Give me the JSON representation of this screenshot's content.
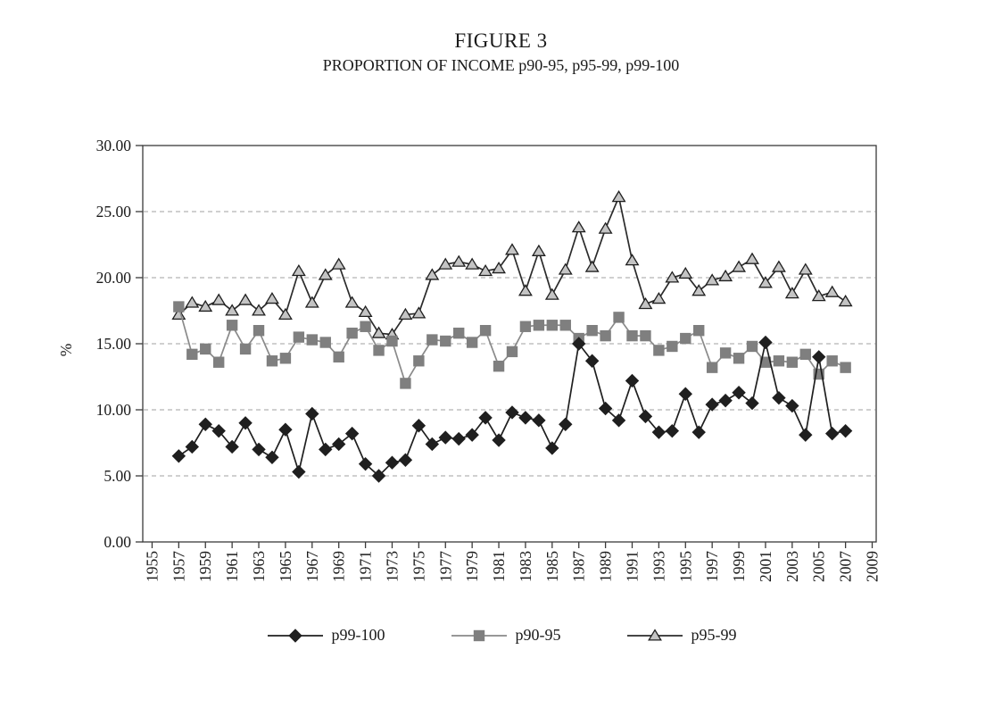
{
  "figure": {
    "title": "FIGURE 3",
    "subtitle": "PROPORTION OF INCOME p90-95, p95-99, p99-100"
  },
  "chart_data": {
    "type": "line",
    "title": "FIGURE 3",
    "subtitle": "PROPORTION OF INCOME p90-95, p95-99, p99-100",
    "xlabel": "",
    "ylabel": "%",
    "xlim": [
      1954.3,
      2009.3
    ],
    "ylim": [
      0,
      30
    ],
    "grid": true,
    "grid_values": [
      5,
      10,
      15,
      20,
      25
    ],
    "legend_position": "bottom",
    "x_ticks": [
      1955,
      1957,
      1959,
      1961,
      1963,
      1965,
      1967,
      1969,
      1971,
      1973,
      1975,
      1977,
      1979,
      1981,
      1983,
      1985,
      1987,
      1989,
      1991,
      1993,
      1995,
      1997,
      1999,
      2001,
      2003,
      2005,
      2007,
      2009
    ],
    "y_ticks": [
      0,
      5,
      10,
      15,
      20,
      25,
      30
    ],
    "y_tick_labels": [
      "0.00",
      "5.00",
      "10.00",
      "15.00",
      "20.00",
      "25.00",
      "30.00"
    ],
    "x": [
      1957,
      1958,
      1959,
      1960,
      1961,
      1962,
      1963,
      1964,
      1965,
      1966,
      1967,
      1968,
      1969,
      1970,
      1971,
      1972,
      1973,
      1974,
      1975,
      1976,
      1977,
      1978,
      1979,
      1980,
      1981,
      1982,
      1983,
      1984,
      1985,
      1986,
      1987,
      1988,
      1989,
      1990,
      1991,
      1992,
      1993,
      1994,
      1995,
      1996,
      1997,
      1998,
      1999,
      2000,
      2001,
      2002,
      2003,
      2004,
      2005,
      2006,
      2007
    ],
    "series": [
      {
        "name": "p99-100",
        "marker": "diamond",
        "line_color": "#1f1f1f",
        "marker_fill": "#1f1f1f",
        "marker_stroke": "#1f1f1f",
        "values": [
          6.5,
          7.2,
          8.9,
          8.4,
          7.2,
          9.0,
          7.0,
          6.4,
          8.5,
          5.3,
          9.7,
          7.0,
          7.4,
          8.2,
          5.9,
          5.0,
          6.0,
          6.2,
          8.8,
          7.4,
          7.9,
          7.8,
          8.1,
          9.4,
          7.7,
          9.8,
          9.4,
          9.2,
          7.1,
          8.9,
          15.0,
          13.7,
          10.1,
          9.2,
          12.2,
          9.5,
          8.3,
          8.4,
          11.2,
          8.3,
          10.4,
          10.7,
          11.3,
          10.5,
          15.1,
          10.9,
          10.3,
          8.1,
          14.0,
          8.2,
          8.4
        ]
      },
      {
        "name": "p90-95",
        "marker": "square",
        "line_color": "#8a8a8a",
        "marker_fill": "#7f7f7f",
        "marker_stroke": "#7f7f7f",
        "values": [
          17.8,
          14.2,
          14.6,
          13.6,
          16.4,
          14.6,
          16.0,
          13.7,
          13.9,
          15.5,
          15.3,
          15.1,
          14.0,
          15.8,
          16.3,
          14.5,
          15.2,
          12.0,
          13.7,
          15.3,
          15.2,
          15.8,
          15.1,
          16.0,
          13.3,
          14.4,
          16.3,
          16.4,
          16.4,
          16.4,
          15.4,
          16.0,
          15.6,
          17.0,
          15.6,
          15.6,
          14.5,
          14.8,
          15.4,
          16.0,
          13.2,
          14.3,
          13.9,
          14.8,
          13.6,
          13.7,
          13.6,
          14.2,
          12.7,
          13.7,
          13.2
        ]
      },
      {
        "name": "p95-99",
        "marker": "triangle",
        "line_color": "#2b2b2b",
        "marker_fill": "#c4c4c4",
        "marker_stroke": "#1f1f1f",
        "values": [
          17.2,
          18.1,
          17.8,
          18.3,
          17.5,
          18.3,
          17.5,
          18.4,
          17.2,
          20.5,
          18.1,
          20.2,
          21.0,
          18.1,
          17.4,
          15.8,
          15.7,
          17.2,
          17.3,
          20.2,
          21.0,
          21.2,
          21.0,
          20.5,
          20.7,
          22.1,
          19.0,
          22.0,
          18.7,
          20.6,
          23.8,
          20.8,
          23.7,
          26.1,
          21.3,
          18.0,
          18.4,
          20.0,
          20.3,
          19.0,
          19.8,
          20.1,
          20.8,
          21.4,
          19.6,
          20.8,
          18.8,
          20.6,
          18.6,
          18.9,
          18.2
        ]
      }
    ]
  },
  "colors": {
    "axis": "#3a3a3a",
    "gridline": "#b4b4b4",
    "text": "#1a1a1a",
    "background": "#ffffff"
  }
}
